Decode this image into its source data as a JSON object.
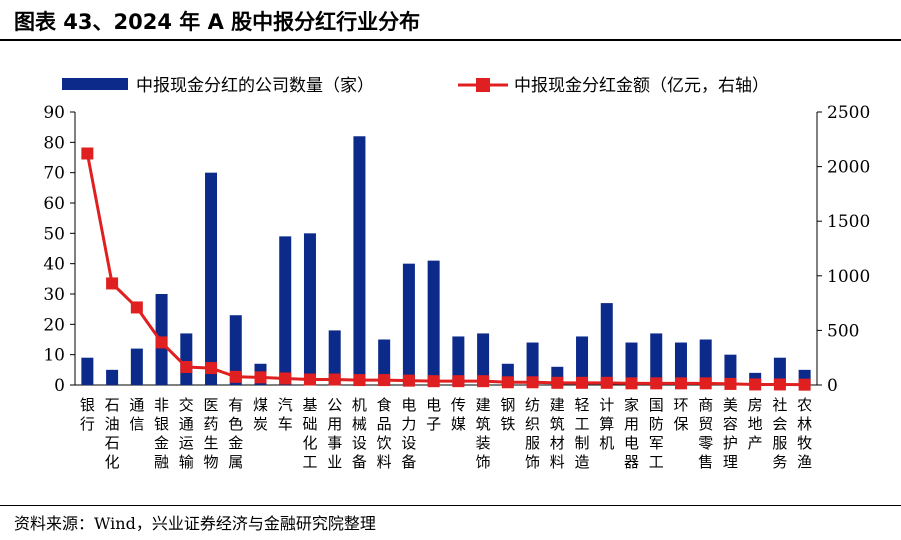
{
  "title": "图表 43、2024 年 A 股中报分红行业分布",
  "source": "资料来源：Wind，兴业证券经济与金融研究院整理",
  "colors": {
    "bar": "#0b2a8a",
    "line": "#e02020"
  },
  "chart_data": {
    "type": "bar+line",
    "categories": [
      "银行",
      "石油石化",
      "通信",
      "非银金融",
      "交通运输",
      "医药生物",
      "有色金属",
      "煤炭",
      "汽车",
      "基础化工",
      "公用事业",
      "机械设备",
      "食品饮料",
      "电力设备",
      "电子",
      "传媒",
      "建筑装饰",
      "钢铁",
      "纺织服饰",
      "建筑材料",
      "轻工制造",
      "计算机",
      "家用电器",
      "国防军工",
      "环保",
      "商贸零售",
      "美容护理",
      "房地产",
      "社会服务",
      "农林牧渔"
    ],
    "series": [
      {
        "name": "中报现金分红的公司数量（家）",
        "type": "bar",
        "axis": "left",
        "values": [
          9,
          5,
          12,
          30,
          17,
          70,
          23,
          7,
          49,
          50,
          18,
          82,
          15,
          40,
          41,
          16,
          17,
          7,
          14,
          6,
          16,
          27,
          14,
          17,
          14,
          15,
          10,
          4,
          9,
          5
        ]
      },
      {
        "name": "中报现金分红金额（亿元，右轴）",
        "type": "line",
        "axis": "right",
        "values": [
          2120,
          930,
          710,
          390,
          165,
          155,
          75,
          70,
          60,
          50,
          50,
          45,
          45,
          40,
          35,
          35,
          35,
          25,
          25,
          20,
          20,
          20,
          15,
          15,
          15,
          15,
          10,
          5,
          5,
          3
        ]
      }
    ],
    "y_left": {
      "min": 0,
      "max": 90,
      "ticks": [
        "0",
        "10",
        "20",
        "30",
        "40",
        "50",
        "60",
        "70",
        "80",
        "90"
      ]
    },
    "y_right": {
      "min": 0,
      "max": 2500,
      "ticks": [
        "0",
        "500",
        "1000",
        "1500",
        "2000",
        "2500"
      ]
    },
    "legend": "top"
  }
}
